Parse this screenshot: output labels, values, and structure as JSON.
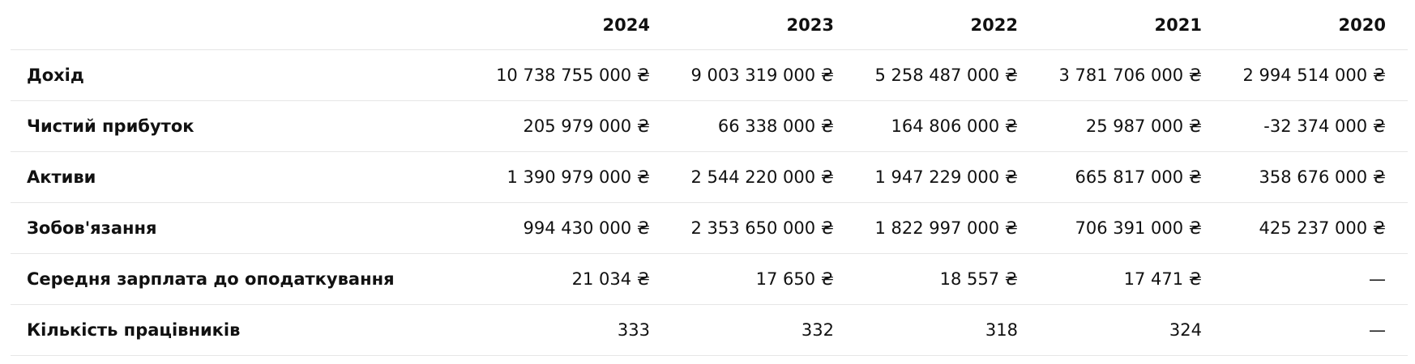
{
  "table": {
    "columns": [
      "2024",
      "2023",
      "2022",
      "2021",
      "2020"
    ],
    "rows": [
      {
        "label": "Дохід",
        "cells": [
          "10 738 755 000 ₴",
          "9 003 319 000 ₴",
          "5 258 487 000 ₴",
          "3 781 706 000 ₴",
          "2 994 514 000 ₴"
        ]
      },
      {
        "label": "Чистий прибуток",
        "cells": [
          "205 979 000 ₴",
          "66 338 000 ₴",
          "164 806 000 ₴",
          "25 987 000 ₴",
          "-32 374 000 ₴"
        ]
      },
      {
        "label": "Активи",
        "cells": [
          "1 390 979 000 ₴",
          "2 544 220 000 ₴",
          "1 947 229 000 ₴",
          "665 817 000 ₴",
          "358 676 000 ₴"
        ]
      },
      {
        "label": "Зобов'язання",
        "cells": [
          "994 430 000 ₴",
          "2 353 650 000 ₴",
          "1 822 997 000 ₴",
          "706 391 000 ₴",
          "425 237 000 ₴"
        ]
      },
      {
        "label": "Середня зарплата до оподаткування",
        "cells": [
          "21 034 ₴",
          "17 650 ₴",
          "18 557 ₴",
          "17 471 ₴",
          "—"
        ]
      },
      {
        "label": "Кількість працівників",
        "cells": [
          "333",
          "332",
          "318",
          "324",
          "—"
        ]
      }
    ]
  }
}
